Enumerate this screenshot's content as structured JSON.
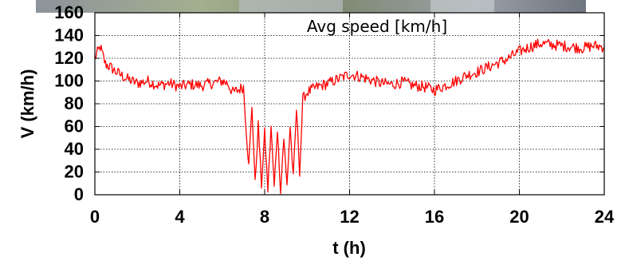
{
  "chart_data": {
    "type": "line",
    "xlabel": "t (h)",
    "ylabel": "V (km/h)",
    "xlim": [
      0,
      24
    ],
    "ylim": [
      0,
      160
    ],
    "xticks": [
      "0",
      "4",
      "8",
      "12",
      "16",
      "20",
      "24"
    ],
    "yticks": [
      "0",
      "20",
      "40",
      "60",
      "80",
      "100",
      "120",
      "140",
      "160"
    ],
    "grid": true,
    "legend_position": "top-center",
    "series": [
      {
        "name": "Avg speed [km/h]",
        "color": "#ff0000",
        "x": [
          0,
          0.25,
          0.5,
          0.75,
          1,
          1.5,
          2,
          2.5,
          3,
          3.5,
          4,
          4.5,
          5,
          5.5,
          6,
          6.25,
          6.5,
          6.75,
          7,
          7.25,
          7.4,
          7.55,
          7.7,
          7.85,
          8,
          8.15,
          8.3,
          8.45,
          8.6,
          8.75,
          8.9,
          9.05,
          9.2,
          9.35,
          9.5,
          9.65,
          9.8,
          10,
          10.5,
          11,
          11.5,
          12,
          12.5,
          13,
          13.5,
          14,
          14.5,
          15,
          15.5,
          16,
          16.5,
          17,
          17.5,
          18,
          18.5,
          19,
          19.5,
          20,
          20.5,
          21,
          21.5,
          22,
          22.5,
          23,
          23.5,
          24
        ],
        "values": [
          120,
          130,
          115,
          112,
          108,
          102,
          98,
          100,
          96,
          98,
          95,
          97,
          96,
          98,
          100,
          98,
          90,
          92,
          95,
          25,
          78,
          10,
          62,
          8,
          55,
          4,
          60,
          6,
          58,
          3,
          50,
          8,
          60,
          15,
          75,
          20,
          85,
          90,
          95,
          98,
          102,
          106,
          104,
          101,
          98,
          97,
          99,
          96,
          95,
          92,
          96,
          100,
          105,
          108,
          112,
          116,
          120,
          126,
          130,
          133,
          132,
          131,
          130,
          129,
          131,
          130
        ]
      }
    ]
  }
}
